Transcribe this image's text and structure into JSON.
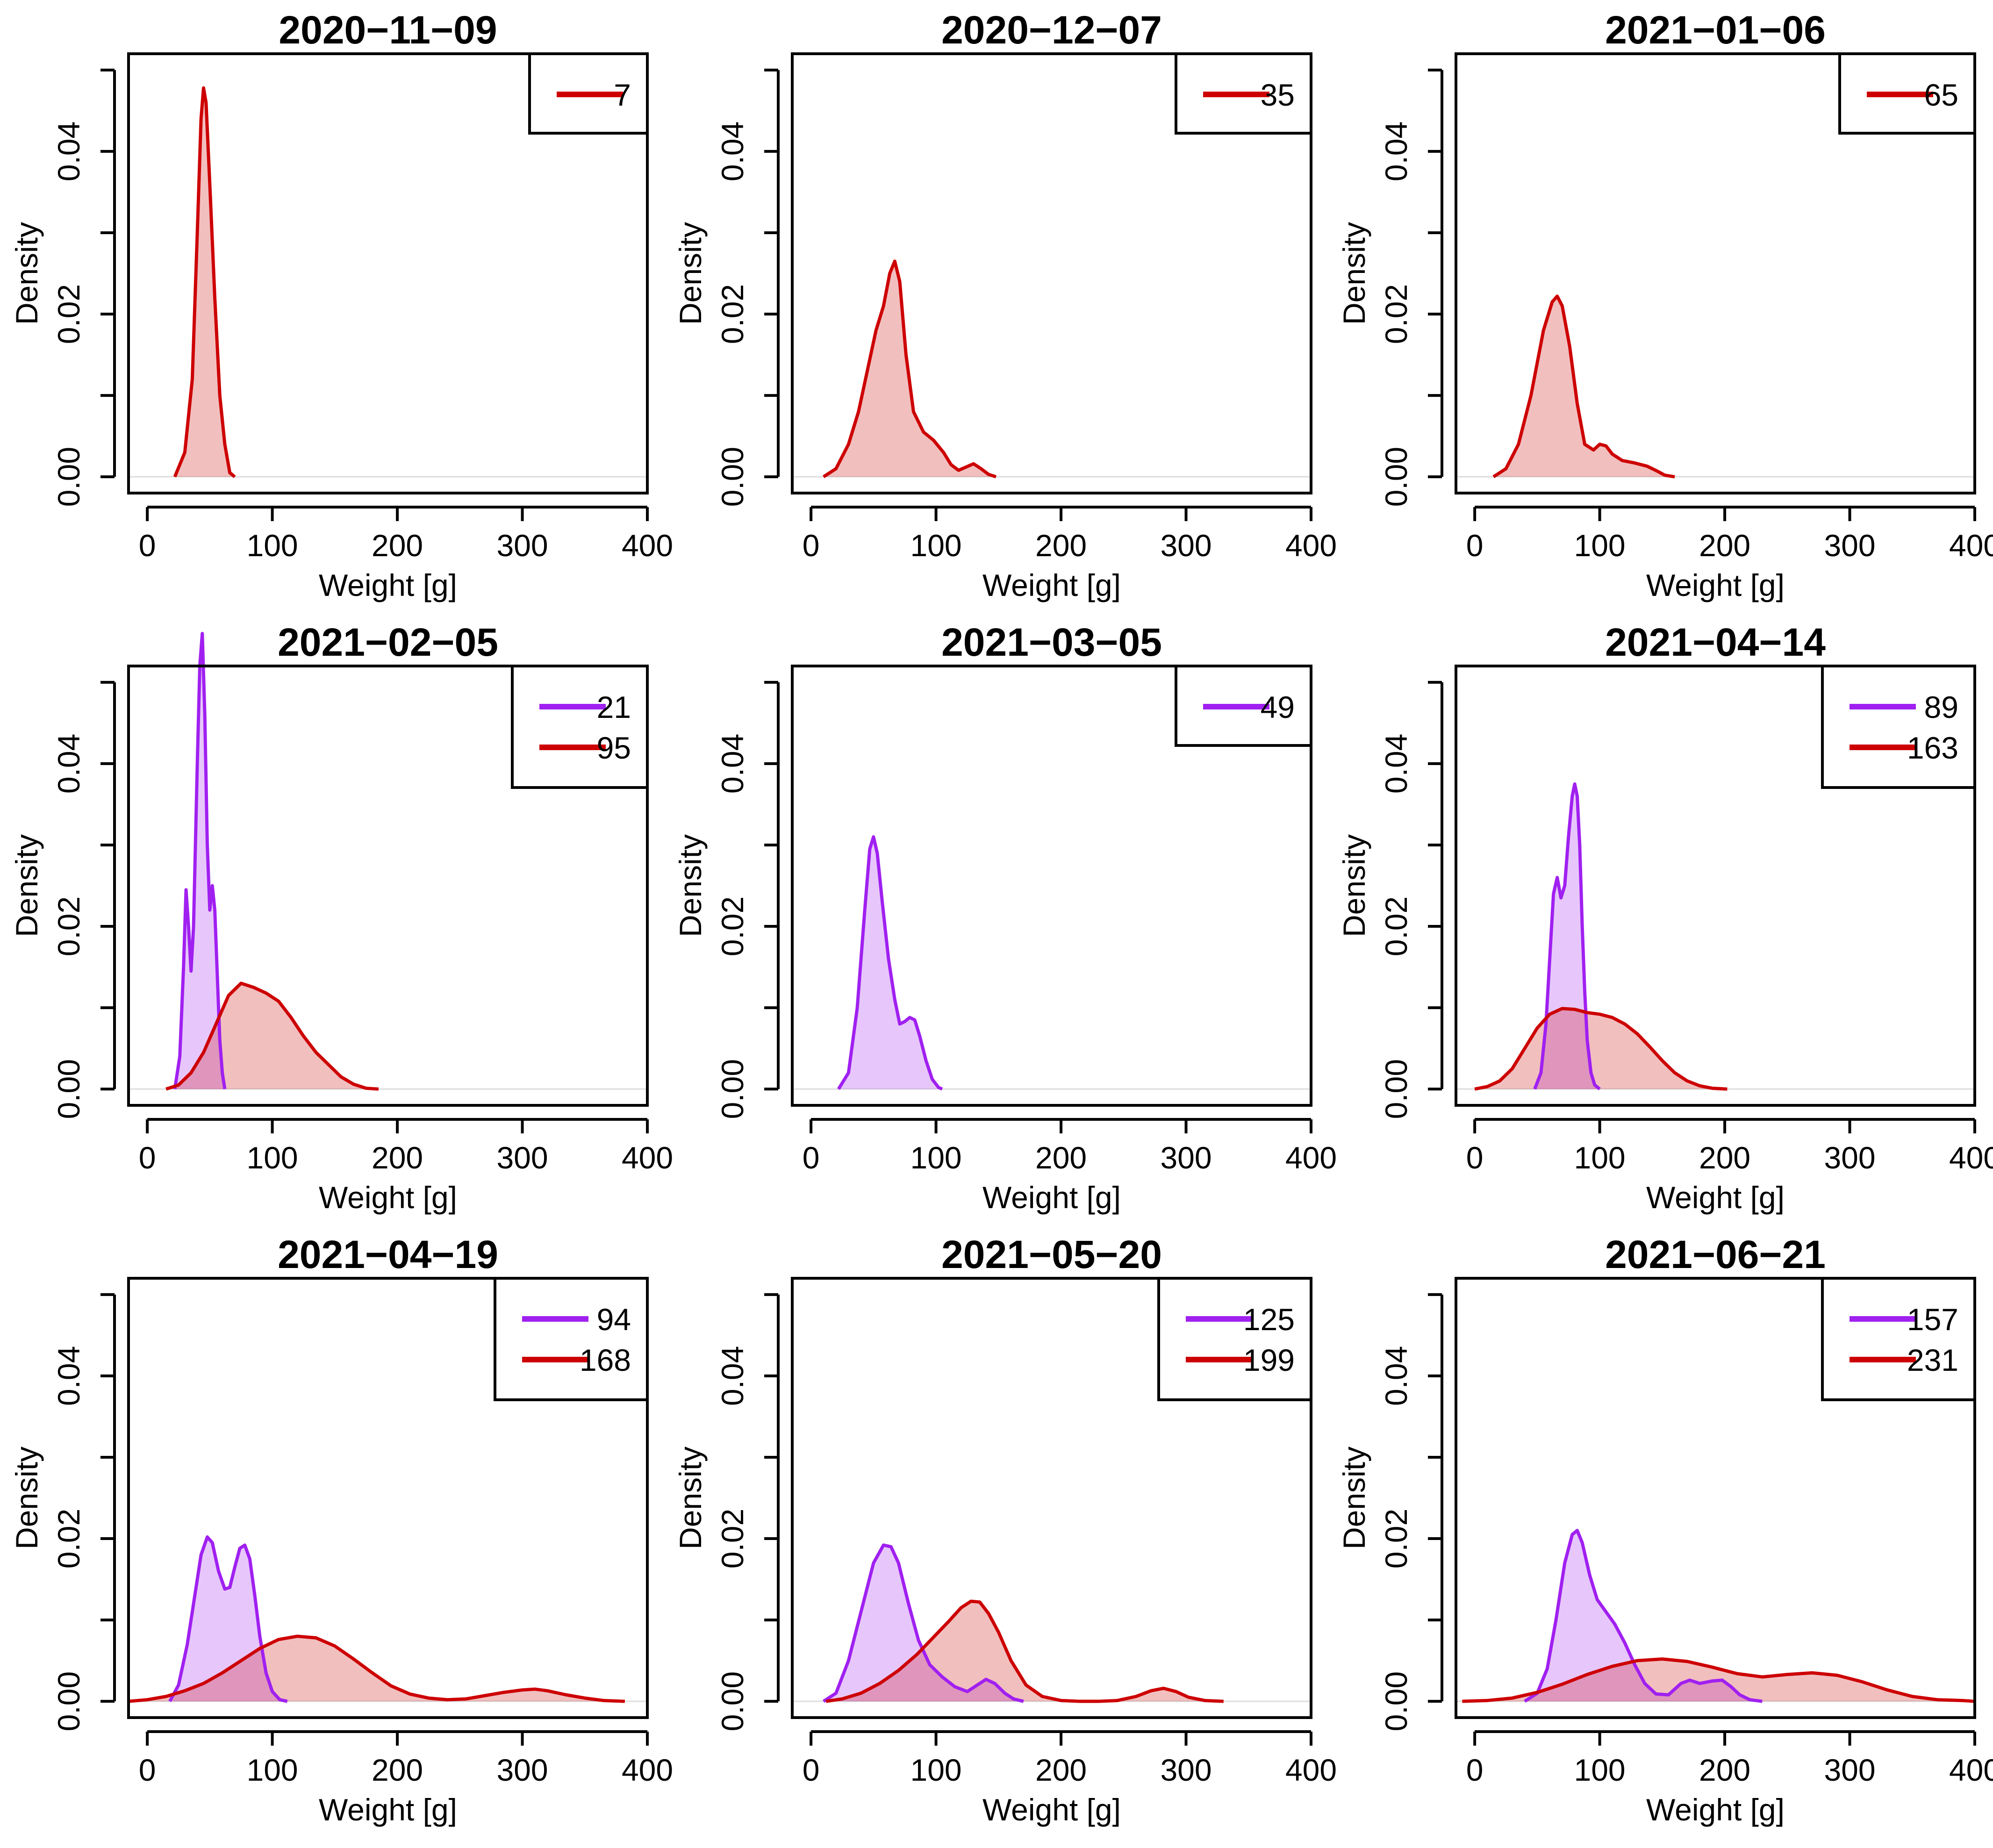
{
  "figure": {
    "background": "#ffffff"
  },
  "colors": {
    "purple_line": "#A020F0",
    "purple_fill": "rgba(160,32,240,0.25)",
    "red_line": "#CD0000",
    "red_fill": "rgba(205,0,0,0.25)"
  },
  "chart_data": [
    {
      "type": "area",
      "title": "2020−11−09",
      "xlabel": "Weight [g]",
      "ylabel": "Density",
      "xlim": [
        -15,
        400
      ],
      "ylim": [
        -0.002,
        0.052
      ],
      "xticks": [
        "0",
        "100",
        "200",
        "300",
        "400"
      ],
      "yticks": [
        "0.00",
        "0.02",
        "0.04"
      ],
      "legend": [
        "7"
      ],
      "series": [
        {
          "name": "7",
          "color": "red",
          "x": [
            22,
            30,
            36,
            40,
            43,
            45,
            47,
            50,
            54,
            58,
            62,
            66,
            70
          ],
          "y": [
            0,
            0.003,
            0.012,
            0.03,
            0.044,
            0.0478,
            0.046,
            0.036,
            0.022,
            0.01,
            0.004,
            0.0005,
            0
          ]
        }
      ]
    },
    {
      "type": "area",
      "title": "2020−12−07",
      "xlabel": "Weight [g]",
      "ylabel": "Density",
      "xlim": [
        -15,
        400
      ],
      "ylim": [
        -0.002,
        0.052
      ],
      "xticks": [
        "0",
        "100",
        "200",
        "300",
        "400"
      ],
      "yticks": [
        "0.00",
        "0.02",
        "0.04"
      ],
      "legend": [
        "35"
      ],
      "series": [
        {
          "name": "35",
          "color": "red",
          "x": [
            10,
            20,
            30,
            38,
            45,
            52,
            58,
            63,
            67,
            71,
            76,
            82,
            90,
            98,
            106,
            112,
            118,
            124,
            130,
            136,
            142,
            148
          ],
          "y": [
            0,
            0.001,
            0.004,
            0.008,
            0.013,
            0.018,
            0.021,
            0.025,
            0.0265,
            0.024,
            0.015,
            0.008,
            0.0055,
            0.0045,
            0.003,
            0.0015,
            0.0008,
            0.0012,
            0.0016,
            0.001,
            0.0003,
            0
          ]
        }
      ]
    },
    {
      "type": "area",
      "title": "2021−01−06",
      "xlabel": "Weight [g]",
      "ylabel": "Density",
      "xlim": [
        -15,
        400
      ],
      "ylim": [
        -0.002,
        0.052
      ],
      "xticks": [
        "0",
        "100",
        "200",
        "300",
        "400"
      ],
      "yticks": [
        "0.00",
        "0.02",
        "0.04"
      ],
      "legend": [
        "65"
      ],
      "series": [
        {
          "name": "65",
          "color": "red",
          "x": [
            15,
            25,
            35,
            45,
            55,
            62,
            66,
            70,
            76,
            82,
            88,
            95,
            100,
            105,
            110,
            118,
            128,
            138,
            146,
            152,
            160
          ],
          "y": [
            0,
            0.001,
            0.004,
            0.01,
            0.018,
            0.0215,
            0.0222,
            0.021,
            0.016,
            0.009,
            0.004,
            0.0033,
            0.004,
            0.0038,
            0.0028,
            0.002,
            0.0017,
            0.0013,
            0.0007,
            0.0002,
            0
          ]
        }
      ]
    },
    {
      "type": "area",
      "title": "2021−02−05",
      "xlabel": "Weight [g]",
      "ylabel": "Density",
      "xlim": [
        -15,
        400
      ],
      "ylim": [
        -0.002,
        0.052
      ],
      "xticks": [
        "0",
        "100",
        "200",
        "300",
        "400"
      ],
      "yticks": [
        "0.00",
        "0.02",
        "0.04"
      ],
      "legend": [
        "21",
        "95"
      ],
      "series": [
        {
          "name": "21",
          "color": "purple",
          "x": [
            22,
            26,
            29,
            31,
            33,
            35,
            37,
            40,
            42,
            44,
            46,
            48,
            50,
            52,
            54,
            56,
            58,
            60,
            62
          ],
          "y": [
            0,
            0.004,
            0.015,
            0.0245,
            0.02,
            0.0145,
            0.02,
            0.04,
            0.052,
            0.056,
            0.046,
            0.03,
            0.022,
            0.025,
            0.022,
            0.014,
            0.006,
            0.002,
            0
          ]
        },
        {
          "name": "95",
          "color": "red",
          "x": [
            15,
            25,
            35,
            45,
            55,
            65,
            75,
            85,
            95,
            105,
            115,
            125,
            135,
            145,
            155,
            165,
            175,
            185
          ],
          "y": [
            0,
            0.0005,
            0.002,
            0.0045,
            0.008,
            0.0115,
            0.013,
            0.0125,
            0.0118,
            0.0108,
            0.0088,
            0.0065,
            0.0045,
            0.003,
            0.0015,
            0.0006,
            0.0001,
            0
          ]
        }
      ]
    },
    {
      "type": "area",
      "title": "2021−03−05",
      "xlabel": "Weight [g]",
      "ylabel": "Density",
      "xlim": [
        -15,
        400
      ],
      "ylim": [
        -0.002,
        0.052
      ],
      "xticks": [
        "0",
        "100",
        "200",
        "300",
        "400"
      ],
      "yticks": [
        "0.00",
        "0.02",
        "0.04"
      ],
      "legend": [
        "49"
      ],
      "series": [
        {
          "name": "49",
          "color": "purple",
          "x": [
            22,
            30,
            37,
            43,
            47,
            50,
            53,
            57,
            62,
            67,
            71,
            75,
            79,
            83,
            87,
            92,
            97,
            102,
            105
          ],
          "y": [
            0,
            0.002,
            0.01,
            0.022,
            0.0295,
            0.031,
            0.029,
            0.023,
            0.016,
            0.011,
            0.008,
            0.0083,
            0.0088,
            0.0085,
            0.0065,
            0.0035,
            0.0012,
            0.0002,
            0
          ]
        }
      ]
    },
    {
      "type": "area",
      "title": "2021−04−14",
      "xlabel": "Weight [g]",
      "ylabel": "Density",
      "xlim": [
        -15,
        400
      ],
      "ylim": [
        -0.002,
        0.052
      ],
      "xticks": [
        "0",
        "100",
        "200",
        "300",
        "400"
      ],
      "yticks": [
        "0.00",
        "0.02",
        "0.04"
      ],
      "legend": [
        "89",
        "163"
      ],
      "series": [
        {
          "name": "89",
          "color": "purple",
          "x": [
            48,
            53,
            57,
            60,
            63,
            66,
            69,
            72,
            75,
            78,
            80,
            82,
            84,
            86,
            88,
            90,
            93,
            96,
            100
          ],
          "y": [
            0,
            0.002,
            0.008,
            0.016,
            0.024,
            0.026,
            0.0235,
            0.025,
            0.031,
            0.036,
            0.0375,
            0.036,
            0.03,
            0.02,
            0.012,
            0.006,
            0.002,
            0.0005,
            0
          ]
        },
        {
          "name": "163",
          "color": "red",
          "x": [
            0,
            10,
            20,
            30,
            40,
            50,
            60,
            70,
            80,
            90,
            100,
            110,
            120,
            130,
            140,
            150,
            160,
            170,
            180,
            190,
            202
          ],
          "y": [
            0,
            0.0003,
            0.001,
            0.0025,
            0.005,
            0.0075,
            0.0092,
            0.0099,
            0.0098,
            0.0094,
            0.0092,
            0.0088,
            0.008,
            0.0068,
            0.0052,
            0.0035,
            0.002,
            0.001,
            0.0004,
            0.0001,
            0
          ]
        }
      ]
    },
    {
      "type": "area",
      "title": "2021−04−19",
      "xlabel": "Weight [g]",
      "ylabel": "Density",
      "xlim": [
        -15,
        400
      ],
      "ylim": [
        -0.002,
        0.052
      ],
      "xticks": [
        "0",
        "100",
        "200",
        "300",
        "400"
      ],
      "yticks": [
        "0.00",
        "0.02",
        "0.04"
      ],
      "legend": [
        "94",
        "168"
      ],
      "series": [
        {
          "name": "94",
          "color": "purple",
          "x": [
            18,
            25,
            32,
            38,
            43,
            48,
            52,
            57,
            62,
            66,
            70,
            74,
            78,
            82,
            86,
            90,
            95,
            100,
            106,
            112
          ],
          "y": [
            0,
            0.002,
            0.007,
            0.013,
            0.018,
            0.0202,
            0.0195,
            0.016,
            0.0138,
            0.014,
            0.0165,
            0.0188,
            0.0192,
            0.0175,
            0.013,
            0.008,
            0.0035,
            0.0012,
            0.0002,
            0
          ]
        },
        {
          "name": "168",
          "color": "red",
          "x": [
            -15,
            0,
            15,
            30,
            45,
            60,
            75,
            90,
            105,
            120,
            135,
            150,
            165,
            180,
            195,
            210,
            225,
            240,
            255,
            270,
            285,
            300,
            310,
            320,
            335,
            350,
            365,
            382
          ],
          "y": [
            0,
            0.0002,
            0.0006,
            0.0013,
            0.0022,
            0.0035,
            0.005,
            0.0065,
            0.0076,
            0.008,
            0.0078,
            0.0068,
            0.0052,
            0.0035,
            0.0019,
            0.0009,
            0.0004,
            0.0002,
            0.0003,
            0.0007,
            0.0011,
            0.0014,
            0.0015,
            0.0013,
            0.0008,
            0.0004,
            0.0001,
            0
          ]
        }
      ]
    },
    {
      "type": "area",
      "title": "2021−05−20",
      "xlabel": "Weight [g]",
      "ylabel": "Density",
      "xlim": [
        -15,
        400
      ],
      "ylim": [
        -0.002,
        0.052
      ],
      "xticks": [
        "0",
        "100",
        "200",
        "300",
        "400"
      ],
      "yticks": [
        "0.00",
        "0.02",
        "0.04"
      ],
      "legend": [
        "125",
        "199"
      ],
      "series": [
        {
          "name": "125",
          "color": "purple",
          "x": [
            10,
            20,
            30,
            40,
            50,
            58,
            64,
            70,
            78,
            86,
            95,
            105,
            115,
            125,
            133,
            140,
            147,
            155,
            162,
            170
          ],
          "y": [
            0,
            0.001,
            0.005,
            0.011,
            0.017,
            0.0192,
            0.019,
            0.017,
            0.012,
            0.0075,
            0.0045,
            0.003,
            0.0018,
            0.0012,
            0.002,
            0.0027,
            0.0022,
            0.001,
            0.0003,
            0
          ]
        },
        {
          "name": "199",
          "color": "red",
          "x": [
            12,
            25,
            40,
            55,
            70,
            85,
            100,
            110,
            120,
            128,
            135,
            142,
            150,
            160,
            172,
            185,
            200,
            215,
            230,
            245,
            260,
            272,
            282,
            292,
            302,
            315,
            330
          ],
          "y": [
            0,
            0.0003,
            0.001,
            0.0022,
            0.0038,
            0.0058,
            0.0082,
            0.0098,
            0.0115,
            0.0123,
            0.0122,
            0.0108,
            0.0085,
            0.005,
            0.002,
            0.0006,
            0.0001,
            0,
            0,
            0.0001,
            0.0006,
            0.0013,
            0.0016,
            0.0012,
            0.0005,
            0.0001,
            0
          ]
        }
      ]
    },
    {
      "type": "area",
      "title": "2021−06−21",
      "xlabel": "Weight [g]",
      "ylabel": "Density",
      "xlim": [
        -15,
        400
      ],
      "ylim": [
        -0.002,
        0.052
      ],
      "xticks": [
        "0",
        "100",
        "200",
        "300",
        "400"
      ],
      "yticks": [
        "0.00",
        "0.02",
        "0.04"
      ],
      "legend": [
        "157",
        "231"
      ],
      "series": [
        {
          "name": "157",
          "color": "purple",
          "x": [
            40,
            50,
            58,
            65,
            72,
            78,
            82,
            86,
            92,
            98,
            105,
            112,
            120,
            128,
            136,
            145,
            155,
            165,
            172,
            180,
            190,
            198,
            205,
            212,
            220,
            230
          ],
          "y": [
            0,
            0.001,
            0.004,
            0.01,
            0.017,
            0.0205,
            0.021,
            0.0195,
            0.0155,
            0.0125,
            0.011,
            0.0095,
            0.0072,
            0.0045,
            0.0022,
            0.0009,
            0.0008,
            0.0022,
            0.0026,
            0.0022,
            0.0025,
            0.0026,
            0.0018,
            0.0008,
            0.0002,
            0
          ]
        },
        {
          "name": "231",
          "color": "red",
          "x": [
            -10,
            10,
            30,
            50,
            70,
            90,
            110,
            130,
            150,
            170,
            190,
            210,
            230,
            250,
            270,
            290,
            310,
            330,
            350,
            370,
            390,
            400
          ],
          "y": [
            0,
            0.0001,
            0.0004,
            0.0011,
            0.0021,
            0.0033,
            0.0043,
            0.005,
            0.0052,
            0.0049,
            0.0042,
            0.0034,
            0.003,
            0.0033,
            0.0035,
            0.0032,
            0.0024,
            0.0014,
            0.0006,
            0.0002,
            0.0001,
            0
          ]
        }
      ]
    }
  ]
}
